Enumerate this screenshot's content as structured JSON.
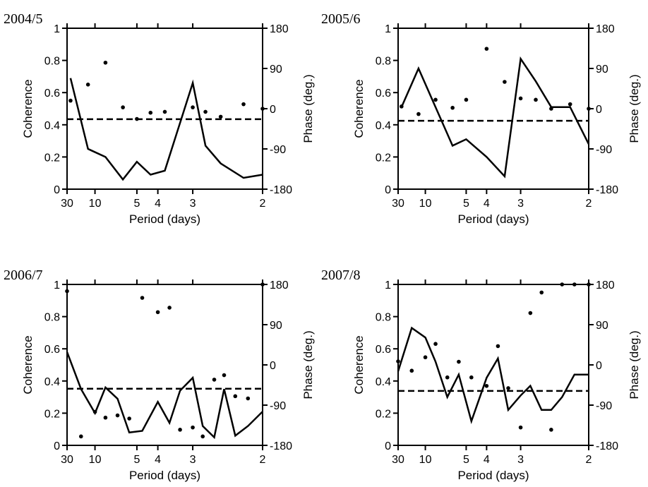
{
  "chart_data": [
    {
      "type": "line",
      "title": "2004/5",
      "xlabel": "Period (days)",
      "ylabel": "Coherence",
      "ylabel_right": "Phase (deg.)",
      "x_tick_labels": [
        "30",
        "10",
        "5",
        "4",
        "3",
        "2"
      ],
      "x_tick_values": [
        30,
        10,
        5,
        4,
        3,
        2
      ],
      "ylim": [
        0,
        1
      ],
      "y_ticks": [
        "0",
        "0.2",
        "0.4",
        "0.6",
        "0.8",
        "1"
      ],
      "ylim_right": [
        -180,
        180
      ],
      "y_ticks_right": [
        "-180",
        "-90",
        "0",
        "90",
        "180"
      ],
      "series": [
        {
          "style": "line",
          "x": [
            24,
            12,
            8,
            6,
            5,
            4.3,
            3.75,
            3,
            2.75,
            2.5,
            2.2,
            2
          ],
          "values": [
            0.69,
            0.25,
            0.2,
            0.06,
            0.17,
            0.09,
            0.115,
            0.66,
            0.27,
            0.16,
            0.07,
            0.09
          ]
        },
        {
          "style": "points",
          "x": [
            24,
            12,
            8,
            6,
            5,
            4.3,
            3.75,
            3,
            2.75,
            2.5,
            2.2,
            2
          ],
          "values": [
            18,
            54,
            103,
            3,
            -23,
            -9,
            -7,
            3,
            -7,
            -18,
            10,
            0
          ]
        },
        {
          "style": "dashed",
          "x": [
            30,
            2
          ],
          "values": [
            0.435,
            0.435
          ]
        }
      ]
    },
    {
      "type": "line",
      "title": "2005/6",
      "xlabel": "Period (days)",
      "ylabel": "Coherence",
      "ylabel_right": "Phase (deg.)",
      "x_tick_labels": [
        "30",
        "10",
        "5",
        "4",
        "3",
        "2"
      ],
      "x_tick_values": [
        30,
        10,
        5,
        4,
        3,
        2
      ],
      "ylim": [
        0,
        1
      ],
      "y_ticks": [
        "0",
        "0.2",
        "0.4",
        "0.6",
        "0.8",
        "1"
      ],
      "ylim_right": [
        -180,
        180
      ],
      "y_ticks_right": [
        "-180",
        "-90",
        "0",
        "90",
        "180"
      ],
      "series": [
        {
          "style": "line",
          "x": [
            24,
            12,
            8,
            6,
            5,
            4,
            3.4,
            3,
            2.7,
            2.45,
            2.2,
            2
          ],
          "values": [
            0.51,
            0.75,
            0.51,
            0.27,
            0.31,
            0.2,
            0.08,
            0.81,
            0.67,
            0.51,
            0.51,
            0.28
          ]
        },
        {
          "style": "points",
          "x": [
            24,
            12,
            8,
            6,
            5,
            4,
            3.4,
            3,
            2.7,
            2.45,
            2.2,
            2
          ],
          "values": [
            5,
            -12,
            20,
            2,
            20,
            134,
            60,
            23,
            20,
            0,
            10,
            0
          ]
        },
        {
          "style": "dashed",
          "x": [
            30,
            2
          ],
          "values": [
            0.425,
            0.425
          ]
        }
      ]
    },
    {
      "type": "line",
      "title": "2006/7",
      "xlabel": "Period (days)",
      "ylabel": "Coherence",
      "ylabel_right": "Phase (deg.)",
      "x_tick_labels": [
        "30",
        "10",
        "5",
        "4",
        "3",
        "2"
      ],
      "x_tick_values": [
        30,
        10,
        5,
        4,
        3,
        2
      ],
      "ylim": [
        0,
        1
      ],
      "y_ticks": [
        "0",
        "0.2",
        "0.4",
        "0.6",
        "0.8",
        "1"
      ],
      "ylim_right": [
        -180,
        180
      ],
      "y_ticks_right": [
        "-180",
        "-90",
        "0",
        "90",
        "180"
      ],
      "series": [
        {
          "style": "line",
          "x": [
            30,
            15,
            10,
            8,
            6.5,
            5.5,
            4.7,
            4,
            3.6,
            3.3,
            3,
            2.8,
            2.6,
            2.45,
            2.3,
            2.15,
            2
          ],
          "values": [
            0.58,
            0.35,
            0.2,
            0.36,
            0.29,
            0.08,
            0.09,
            0.27,
            0.14,
            0.34,
            0.42,
            0.12,
            0.05,
            0.35,
            0.06,
            0.12,
            0.21
          ]
        },
        {
          "style": "points",
          "x": [
            30,
            15,
            10,
            8,
            6.5,
            5.5,
            4.7,
            4,
            3.6,
            3.3,
            3,
            2.8,
            2.6,
            2.45,
            2.3,
            2.15,
            2
          ],
          "values": [
            165,
            -160,
            -105,
            -118,
            -113,
            -120,
            150,
            118,
            128,
            -145,
            -140,
            -160,
            -33,
            -23,
            -70,
            -75,
            180
          ]
        },
        {
          "style": "dashed",
          "x": [
            30,
            2
          ],
          "values": [
            0.352,
            0.352
          ]
        }
      ]
    },
    {
      "type": "line",
      "title": "2007/8",
      "xlabel": "Period (days)",
      "ylabel": "Coherence",
      "ylabel_right": "Phase (deg.)",
      "x_tick_labels": [
        "30",
        "10",
        "5",
        "4",
        "3",
        "2"
      ],
      "x_tick_values": [
        30,
        10,
        5,
        4,
        3,
        2
      ],
      "ylim": [
        0,
        1
      ],
      "y_ticks": [
        "0",
        "0.2",
        "0.4",
        "0.6",
        "0.8",
        "1"
      ],
      "ylim_right": [
        -180,
        180
      ],
      "y_ticks_right": [
        "-180",
        "-90",
        "0",
        "90",
        "180"
      ],
      "series": [
        {
          "style": "line",
          "x": [
            30,
            15,
            10,
            8,
            6.5,
            5.5,
            4.7,
            4,
            3.6,
            3.3,
            3,
            2.8,
            2.6,
            2.45,
            2.3,
            2.15,
            2
          ],
          "values": [
            0.46,
            0.73,
            0.67,
            0.52,
            0.3,
            0.44,
            0.15,
            0.42,
            0.54,
            0.22,
            0.31,
            0.37,
            0.22,
            0.22,
            0.3,
            0.44,
            0.44
          ]
        },
        {
          "style": "points",
          "x": [
            30,
            15,
            10,
            8,
            6.5,
            5.5,
            4.7,
            4,
            3.6,
            3.3,
            3,
            2.8,
            2.6,
            2.45,
            2.3,
            2.15,
            2
          ],
          "values": [
            8,
            -13,
            17,
            47,
            -28,
            7,
            -28,
            -47,
            42,
            -52,
            -140,
            116,
            162,
            -145,
            180,
            180,
            180
          ]
        },
        {
          "style": "dashed",
          "x": [
            30,
            2
          ],
          "values": [
            0.338,
            0.338
          ]
        }
      ]
    }
  ]
}
